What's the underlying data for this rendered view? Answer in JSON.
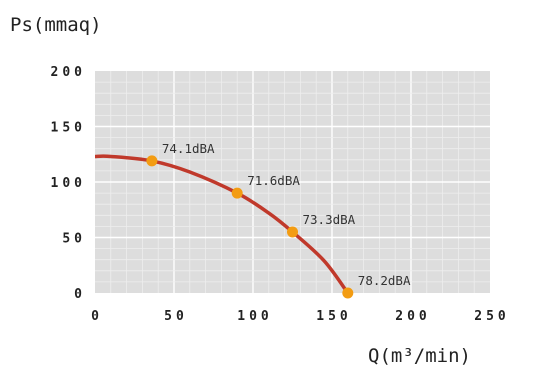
{
  "chart_data": {
    "type": "line",
    "ylabel": "Ps(mmaq)",
    "xlabel": "Q(m³/min)",
    "x_ticks": [
      0,
      50,
      100,
      150,
      200,
      250
    ],
    "y_ticks": [
      0,
      50,
      100,
      150,
      200
    ],
    "xlim": [
      0,
      250
    ],
    "ylim": [
      0,
      200
    ],
    "grid": true,
    "curve": [
      {
        "x": 0,
        "y": 123
      },
      {
        "x": 10,
        "y": 123
      },
      {
        "x": 36,
        "y": 119
      },
      {
        "x": 60,
        "y": 109
      },
      {
        "x": 90,
        "y": 90
      },
      {
        "x": 110,
        "y": 72
      },
      {
        "x": 125,
        "y": 55
      },
      {
        "x": 145,
        "y": 29
      },
      {
        "x": 160,
        "y": 0
      }
    ],
    "points": [
      {
        "x": 36,
        "y": 119,
        "label": "74.1dBA"
      },
      {
        "x": 90,
        "y": 90,
        "label": "71.6dBA"
      },
      {
        "x": 125,
        "y": 55,
        "label": "73.3dBA"
      },
      {
        "x": 160,
        "y": 0,
        "label": "78.2dBA"
      }
    ],
    "colors": {
      "line": "#c0392b",
      "marker": "#f39c12",
      "plot_bg": "#dddddd",
      "grid_minor": "#eeeeee",
      "grid_major": "#ffffff"
    }
  }
}
